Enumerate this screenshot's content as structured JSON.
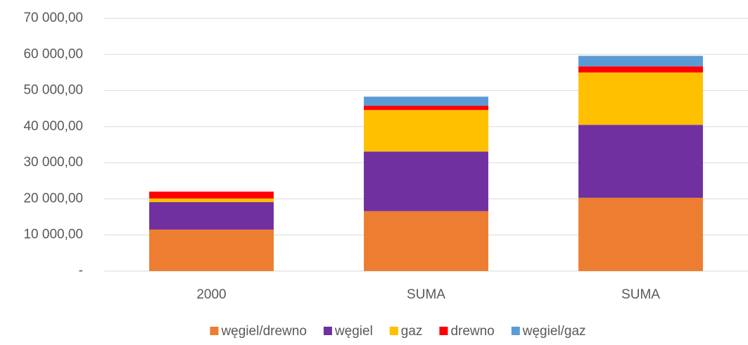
{
  "chart_data": {
    "type": "stacked_bar",
    "categories": [
      "2000",
      "SUMA",
      "SUMA"
    ],
    "series": [
      {
        "name": "węgiel/drewno",
        "color": "#ed7d31",
        "values": [
          11500,
          16600,
          20300
        ]
      },
      {
        "name": "węgiel",
        "color": "#7030a0",
        "values": [
          7600,
          16500,
          20200
        ]
      },
      {
        "name": "gaz",
        "color": "#ffc000",
        "values": [
          1000,
          11500,
          14500
        ]
      },
      {
        "name": "drewno",
        "color": "#ff0000",
        "values": [
          1900,
          1200,
          1700
        ]
      },
      {
        "name": "węgiel/gaz",
        "color": "#5b9bd5",
        "values": [
          0,
          2500,
          2900
        ]
      }
    ],
    "ylim": [
      0,
      70000
    ],
    "yticks": [
      {
        "value": 0,
        "label": "-"
      },
      {
        "value": 10000,
        "label": "10 000,00"
      },
      {
        "value": 20000,
        "label": "20 000,00"
      },
      {
        "value": 30000,
        "label": "30 000,00"
      },
      {
        "value": 40000,
        "label": "40 000,00"
      },
      {
        "value": 50000,
        "label": "50 000,00"
      },
      {
        "value": 60000,
        "label": "60 000,00"
      },
      {
        "value": 70000,
        "label": "70 000,00"
      }
    ],
    "grid": true,
    "legend": "bottom"
  }
}
